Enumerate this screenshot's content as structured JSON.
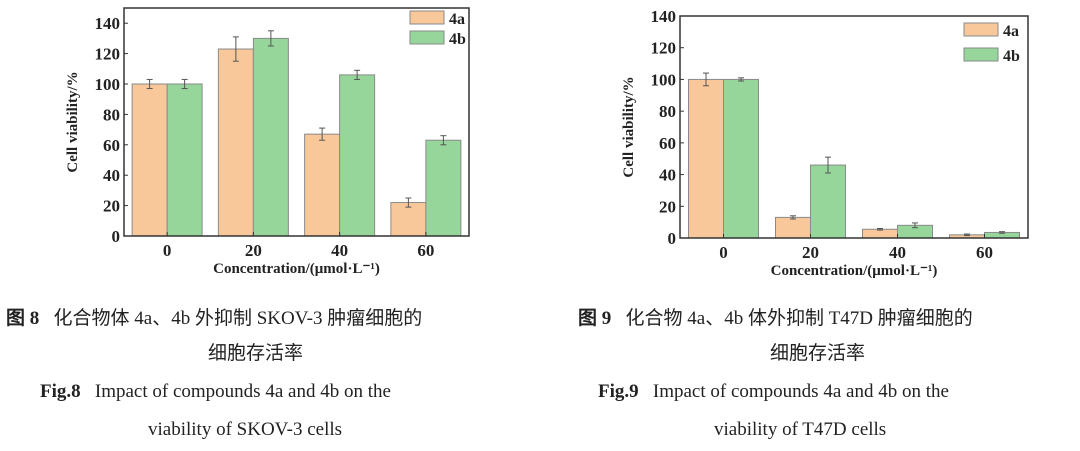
{
  "colors": {
    "4a": "#f9c89a",
    "4b": "#96d69a",
    "edge": "#777777"
  },
  "chart_data": [
    {
      "type": "bar",
      "title": "",
      "categories": [
        "0",
        "20",
        "40",
        "60"
      ],
      "xlabel": "Concentration/(μmol·L⁻¹)",
      "ylabel": "Cell viability/%",
      "ylim": [
        0,
        150
      ],
      "yticks": [
        0,
        20,
        40,
        60,
        80,
        100,
        120,
        140
      ],
      "legend": "top-right",
      "series": [
        {
          "name": "4a",
          "values": [
            100,
            123,
            67,
            22
          ],
          "errors": [
            3,
            8,
            4,
            3
          ]
        },
        {
          "name": "4b",
          "values": [
            100,
            130,
            106,
            63
          ],
          "errors": [
            3,
            5,
            3,
            3
          ]
        }
      ]
    },
    {
      "type": "bar",
      "title": "",
      "categories": [
        "0",
        "20",
        "40",
        "60"
      ],
      "xlabel": "Concentration/(μmol·L⁻¹)",
      "ylabel": "Cell viability/%",
      "ylim": [
        0,
        140
      ],
      "yticks": [
        0,
        20,
        40,
        60,
        80,
        100,
        120,
        140
      ],
      "legend": "top-right",
      "series": [
        {
          "name": "4a",
          "values": [
            100,
            13,
            5.5,
            2
          ],
          "errors": [
            4,
            1,
            0.5,
            0.5
          ]
        },
        {
          "name": "4b",
          "values": [
            100,
            46,
            8,
            3.5
          ],
          "errors": [
            1,
            5,
            1.5,
            0.5
          ]
        }
      ]
    }
  ],
  "captions": [
    {
      "cn_label": "图 8",
      "cn_line1": "化合物体 4a、4b 外抑制 SKOV-3 肿瘤细胞的",
      "cn_line2": "细胞存活率",
      "en_label": "Fig.8",
      "en_line1": "Impact of compounds 4a and 4b on the",
      "en_line2": "viability of SKOV-3 cells"
    },
    {
      "cn_label": "图 9",
      "cn_line1": "化合物 4a、4b 体外抑制 T47D 肿瘤细胞的",
      "cn_line2": "细胞存活率",
      "en_label": "Fig.9",
      "en_line1": "Impact of compounds 4a and 4b on the",
      "en_line2": "viability of T47D cells"
    }
  ]
}
